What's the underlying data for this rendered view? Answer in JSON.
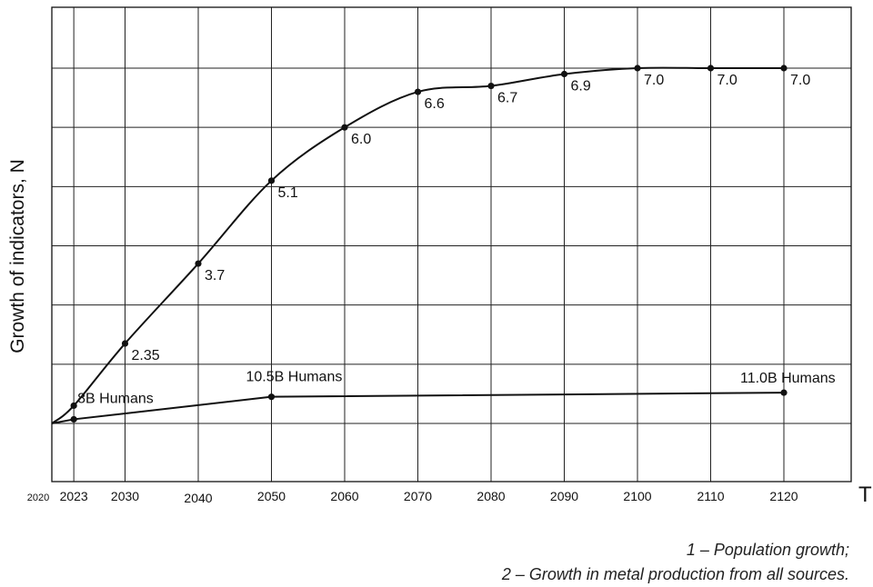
{
  "chart_data": {
    "type": "line",
    "ylabel": "Growth of indicators, N",
    "xlabel": "T",
    "x_start_tick": "2020",
    "x_ticks": [
      2023,
      2030,
      2040,
      2050,
      2060,
      2070,
      2080,
      2090,
      2100,
      2110,
      2120
    ],
    "xlim": [
      2020,
      2120
    ],
    "ylim": [
      1,
      8
    ],
    "grid": true,
    "series": [
      {
        "x": [
          2020,
          2023,
          2030,
          2040,
          2050,
          2060,
          2070,
          2080,
          2090,
          2100,
          2110,
          2120
        ],
        "y": [
          1.0,
          1.3,
          2.35,
          3.7,
          5.1,
          6.0,
          6.6,
          6.7,
          6.9,
          7.0,
          7.0,
          7.0
        ],
        "labels": [
          "",
          "",
          "2.35",
          "3.7",
          "5.1",
          "6.0",
          "6.6",
          "6.7",
          "6.9",
          "7.0",
          "7.0",
          "7.0"
        ]
      },
      {
        "x": [
          2020,
          2023,
          2050,
          2120
        ],
        "y": [
          1.0,
          1.07,
          1.45,
          1.52
        ],
        "annotations": [
          {
            "x": 2023,
            "text": "8B Humans"
          },
          {
            "x": 2050,
            "text": "10.5B Humans"
          },
          {
            "x": 2120,
            "text": "11.0B Humans"
          }
        ]
      }
    ],
    "legend": [
      "1 – Population growth;",
      "2 – Growth in metal production from all sources."
    ]
  }
}
